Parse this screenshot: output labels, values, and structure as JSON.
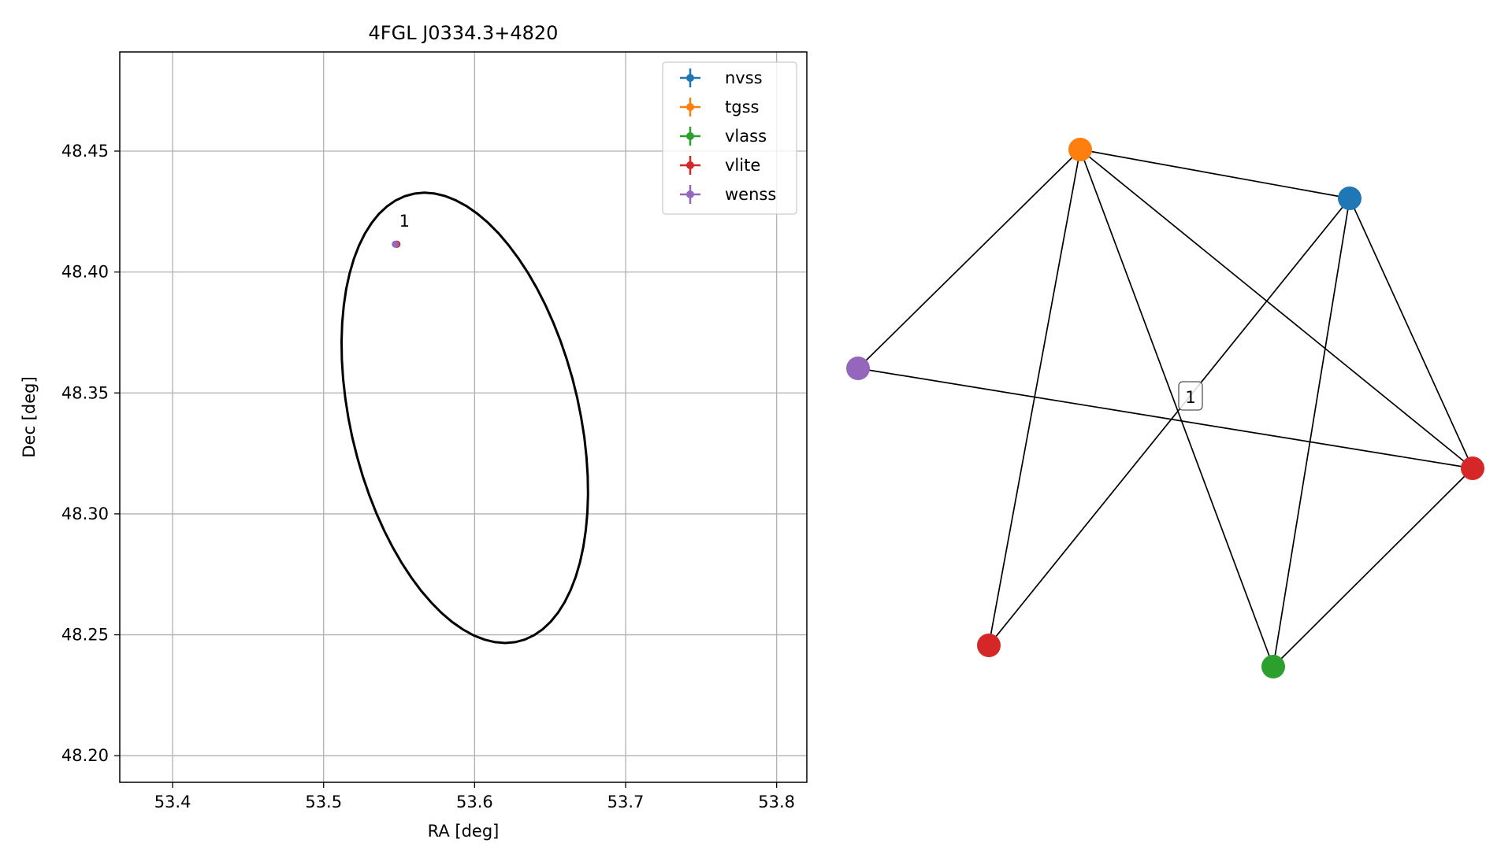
{
  "colors": {
    "nvss": "#1f77b4",
    "tgss": "#ff7f0e",
    "vlass": "#2ca02c",
    "vlite": "#d62728",
    "wenss": "#9467bd",
    "grid": "#b0b0b0",
    "ellipse": "#000000"
  },
  "chart_data": [
    {
      "type": "scatter",
      "title": "4FGL J0334.3+4820",
      "xlabel": "RA [deg]",
      "ylabel": "Dec [deg]",
      "xlim": [
        53.365,
        53.82
      ],
      "ylim": [
        48.189,
        48.491
      ],
      "xticks": [
        53.4,
        53.5,
        53.6,
        53.7,
        53.8
      ],
      "xtick_labels": [
        "53.4",
        "53.5",
        "53.6",
        "53.7",
        "53.8"
      ],
      "yticks": [
        48.2,
        48.25,
        48.3,
        48.35,
        48.4,
        48.45
      ],
      "ytick_labels": [
        "48.20",
        "48.25",
        "48.30",
        "48.35",
        "48.40",
        "48.45"
      ],
      "grid": true,
      "legend_position": "top-right",
      "series": [
        {
          "name": "nvss",
          "x": [
            53.5485
          ],
          "y": [
            48.4115
          ]
        },
        {
          "name": "tgss",
          "x": [
            53.5485
          ],
          "y": [
            48.4115
          ]
        },
        {
          "name": "vlass",
          "x": [
            53.5485
          ],
          "y": [
            48.4115
          ]
        },
        {
          "name": "vlite",
          "x": [
            53.5485
          ],
          "y": [
            48.4115
          ]
        },
        {
          "name": "wenss",
          "x": [
            53.5475
          ],
          "y": [
            48.4115
          ]
        }
      ],
      "annotations": [
        {
          "text": "1",
          "x": 53.5535,
          "y": 48.4188
        }
      ],
      "ellipse": {
        "center_ra": 53.5935,
        "center_dec": 48.3397,
        "semi_major": 0.1017,
        "semi_minor": 0.0706,
        "angle_deg": -56
      }
    },
    {
      "type": "network",
      "nodes": [
        {
          "id": "tgss",
          "catalog": "tgss"
        },
        {
          "id": "nvss",
          "catalog": "nvss"
        },
        {
          "id": "wenss",
          "catalog": "wenss"
        },
        {
          "id": "vlite_r",
          "catalog": "vlite"
        },
        {
          "id": "vlite_l",
          "catalog": "vlite"
        },
        {
          "id": "vlass",
          "catalog": "vlass"
        }
      ],
      "edges": [
        [
          "tgss",
          "nvss"
        ],
        [
          "tgss",
          "wenss"
        ],
        [
          "tgss",
          "vlite_l"
        ],
        [
          "tgss",
          "vlass"
        ],
        [
          "tgss",
          "vlite_r"
        ],
        [
          "nvss",
          "vlite_l"
        ],
        [
          "nvss",
          "vlass"
        ],
        [
          "nvss",
          "vlite_r"
        ],
        [
          "wenss",
          "vlite_r"
        ],
        [
          "vlass",
          "vlite_r"
        ]
      ],
      "cluster_label": "1"
    }
  ]
}
